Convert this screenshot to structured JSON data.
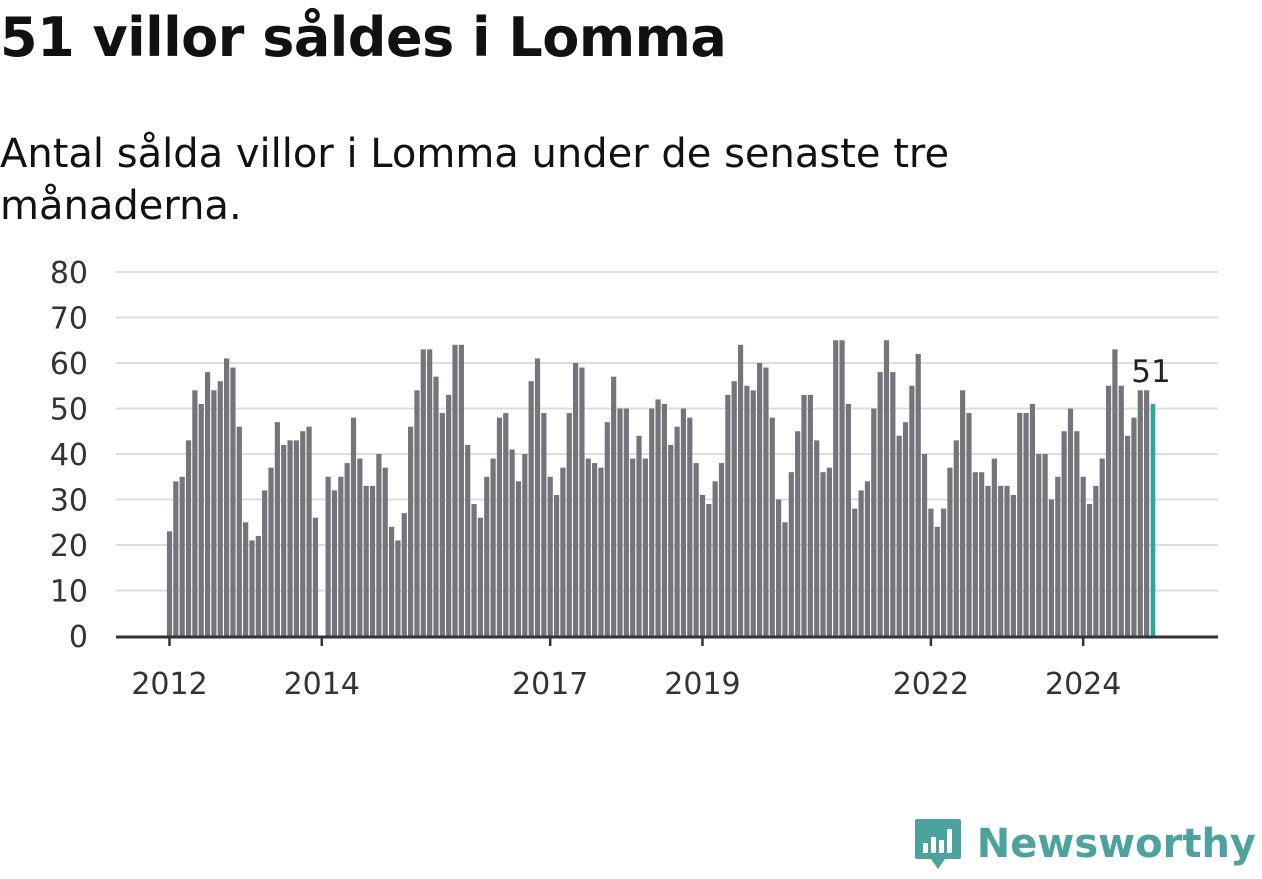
{
  "header": {
    "title": "51 villor såldes i Lomma",
    "subtitle": "Antal sålda villor i Lomma under de senaste tre månaderna."
  },
  "brand": {
    "name": "Newsworthy",
    "icon": "newsworthy-logo-icon"
  },
  "colors": {
    "bar": "#75747a",
    "highlight": "#2aa89c",
    "grid": "#dddddd",
    "axis": "#333333",
    "brand": "#4aa39c"
  },
  "chart_data": {
    "type": "bar",
    "x_start": "2012-01",
    "x_end": "2024-10",
    "x_ticks": [
      {
        "label": "2012",
        "date": "2012-01"
      },
      {
        "label": "2014",
        "date": "2014-01"
      },
      {
        "label": "2017",
        "date": "2017-01"
      },
      {
        "label": "2019",
        "date": "2019-01"
      },
      {
        "label": "2022",
        "date": "2022-01"
      },
      {
        "label": "2024",
        "date": "2024-01"
      }
    ],
    "ylim": [
      0,
      80
    ],
    "y_ticks": [
      0,
      10,
      20,
      30,
      40,
      50,
      60,
      70,
      80
    ],
    "grid": true,
    "values": [
      23,
      34,
      35,
      43,
      54,
      51,
      58,
      54,
      56,
      61,
      59,
      46,
      25,
      21,
      22,
      32,
      37,
      47,
      42,
      43,
      43,
      45,
      46,
      26,
      null,
      35,
      32,
      35,
      38,
      48,
      39,
      33,
      33,
      40,
      37,
      24,
      21,
      27,
      46,
      54,
      63,
      63,
      57,
      49,
      53,
      64,
      64,
      42,
      29,
      26,
      35,
      39,
      48,
      49,
      41,
      34,
      40,
      56,
      61,
      49,
      35,
      31,
      37,
      49,
      60,
      59,
      39,
      38,
      37,
      47,
      57,
      50,
      50,
      39,
      44,
      39,
      50,
      52,
      51,
      42,
      46,
      50,
      48,
      38,
      31,
      29,
      34,
      38,
      53,
      56,
      64,
      55,
      54,
      60,
      59,
      48,
      30,
      25,
      36,
      45,
      53,
      53,
      43,
      36,
      37,
      65,
      65,
      51,
      28,
      32,
      34,
      50,
      58,
      65,
      58,
      44,
      47,
      55,
      62,
      40,
      28,
      24,
      28,
      37,
      43,
      54,
      49,
      36,
      36,
      33,
      39,
      33,
      33,
      31,
      49,
      49,
      51,
      40,
      40,
      30,
      35,
      45,
      50,
      45,
      35,
      29,
      33,
      39,
      55,
      63,
      55,
      44,
      48,
      54,
      54,
      51
    ],
    "highlight_last": true,
    "last_value_label": "51"
  }
}
